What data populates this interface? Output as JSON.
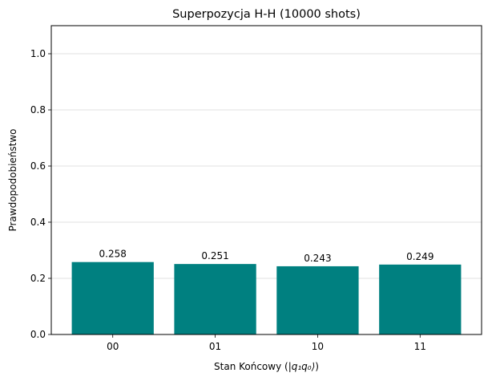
{
  "chart_data": {
    "type": "bar",
    "title": "Superpozycja H-H (10000 shots)",
    "xlabel_prefix": "Stan Końcowy (",
    "xlabel_ket": "|q₁q₀⟩",
    "xlabel_suffix": ")",
    "ylabel": "Prawdopodobieństwo",
    "categories": [
      "00",
      "01",
      "10",
      "11"
    ],
    "values": [
      0.258,
      0.251,
      0.243,
      0.249
    ],
    "data_labels": [
      "0.258",
      "0.251",
      "0.243",
      "0.249"
    ],
    "ylim": [
      0,
      1.1
    ],
    "yticks": [
      0.0,
      0.2,
      0.4,
      0.6,
      0.8,
      1.0
    ],
    "ytick_labels": [
      "0.0",
      "0.2",
      "0.4",
      "0.6",
      "0.8",
      "1.0"
    ],
    "bar_color": "#008080",
    "grid": "y-axis, light gray"
  }
}
